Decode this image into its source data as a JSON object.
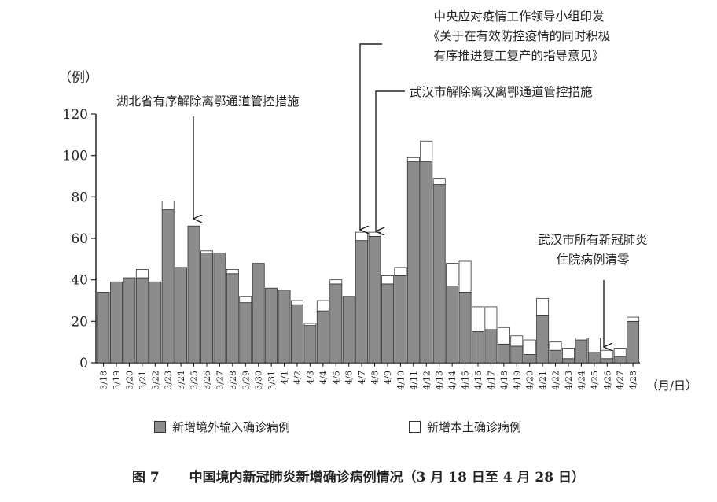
{
  "chart_data": {
    "type": "bar",
    "stacked": true,
    "yunit": "（例）",
    "xunit": "（月/日）",
    "ylim": [
      0,
      120
    ],
    "yticks": [
      0,
      20,
      40,
      60,
      80,
      100,
      120
    ],
    "grid": false,
    "legend_position": "bottom",
    "categories": [
      "3/18",
      "3/19",
      "3/20",
      "3/21",
      "3/22",
      "3/23",
      "3/24",
      "3/25",
      "3/26",
      "3/27",
      "3/28",
      "3/29",
      "3/30",
      "3/31",
      "4/1",
      "4/2",
      "4/3",
      "4/4",
      "4/5",
      "4/6",
      "4/7",
      "4/8",
      "4/9",
      "4/10",
      "4/11",
      "4/12",
      "4/13",
      "4/14",
      "4/15",
      "4/16",
      "4/17",
      "4/18",
      "4/19",
      "4/20",
      "4/21",
      "4/22",
      "4/23",
      "4/24",
      "4/25",
      "4/26",
      "4/27",
      "4/28"
    ],
    "series": [
      {
        "name": "新增境外输入确诊病例",
        "color": "#8c8c8c",
        "values": [
          34,
          39,
          41,
          41,
          39,
          74,
          46,
          66,
          53,
          53,
          43,
          29,
          48,
          36,
          35,
          28,
          18,
          25,
          38,
          32,
          59,
          61,
          38,
          42,
          97,
          97,
          86,
          37,
          34,
          15,
          16,
          9,
          8,
          4,
          23,
          6,
          2,
          11,
          5,
          2,
          3,
          20
        ]
      },
      {
        "name": "新增本土确诊病例",
        "color": "#ffffff",
        "values": [
          0,
          0,
          0,
          4,
          0,
          4,
          0,
          0,
          1,
          0,
          2,
          3,
          0,
          0,
          0,
          2,
          1,
          5,
          2,
          0,
          4,
          2,
          4,
          4,
          2,
          10,
          3,
          11,
          15,
          12,
          11,
          8,
          5,
          7,
          8,
          4,
          5,
          1,
          7,
          4,
          4,
          2
        ]
      }
    ],
    "annotations": [
      {
        "text_lines": [
          "湖北省有序解除离鄂通道管控措施"
        ],
        "target": "3/25"
      },
      {
        "text_lines": [
          "中央应对疫情工作领导小组印发",
          "《关于在有效防控疫情的同时积极",
          "有序推进复工复产的指导意见》"
        ],
        "target": "4/7"
      },
      {
        "text_lines": [
          "武汉市解除离汉离鄂通道管控措施"
        ],
        "target": "4/8"
      },
      {
        "text_lines": [
          "武汉市所有新冠肺炎",
          "住院病例清零"
        ],
        "target": "4/26"
      }
    ]
  },
  "legend": {
    "foreign_label": "新增境外输入确诊病例",
    "local_label": "新增本土确诊病例"
  },
  "caption": {
    "figure_no": "图 7",
    "title": "中国境内新冠肺炎新增确诊病例情况（3 月 18 日至 4 月 28 日）"
  }
}
